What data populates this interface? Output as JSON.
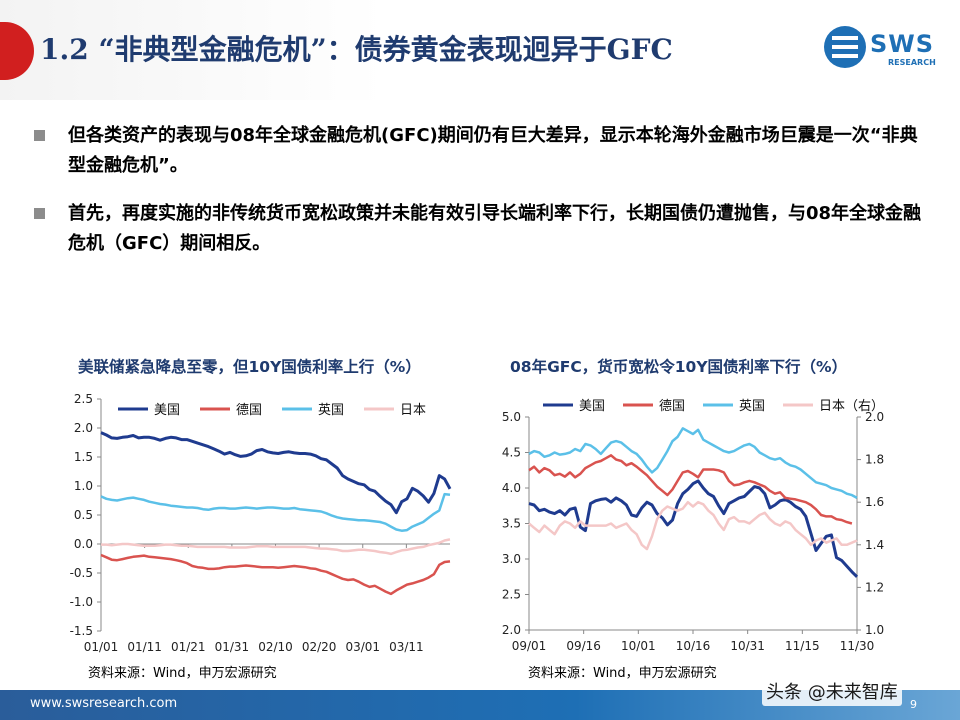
{
  "header": {
    "title": "1.2 “非典型金融危机”：债券黄金表现迥异于GFC",
    "logo_text": "SWS",
    "logo_sub": "RESEARCH"
  },
  "bullets": [
    "但各类资产的表现与08年全球金融危机(GFC)期间仍有巨大差异，显示本轮海外金融市场巨震是一次“非典型金融危机”。",
    "首先，再度实施的非传统货币宽松政策并未能有效引导长端利率下行，长期国债仍遭抛售，与08年全球金融危机（GFC）期间相反。"
  ],
  "footer": {
    "url": "www.swsresearch.com",
    "page": "9",
    "watermark": "头条 @未来智库"
  },
  "colors": {
    "us": "#1f3b8f",
    "de": "#d9534f",
    "uk": "#5bc0e8",
    "jp": "#f4c7c7",
    "title": "#1f3b6f"
  },
  "chart_data": [
    {
      "type": "line",
      "title": "美联储紧急降息至零，但10Y国债利率上行（%）",
      "source": "资料来源：Wind，申万宏源研究",
      "x_ticks": [
        "01/01",
        "01/11",
        "01/21",
        "01/31",
        "02/10",
        "02/20",
        "03/01",
        "03/11"
      ],
      "ylim": [
        -1.5,
        2.5
      ],
      "y_ticks": [
        "2.5",
        "2.0",
        "1.5",
        "1.0",
        "0.5",
        "0.0",
        "-0.5",
        "-1.0",
        "-1.5"
      ],
      "legend": [
        "美国",
        "德国",
        "英国",
        "日本"
      ],
      "grid": false,
      "series": [
        {
          "name": "美国",
          "values": [
            1.92,
            1.88,
            1.83,
            1.82,
            1.84,
            1.85,
            1.87,
            1.83,
            1.84,
            1.84,
            1.82,
            1.79,
            1.82,
            1.84,
            1.83,
            1.8,
            1.8,
            1.77,
            1.74,
            1.71,
            1.68,
            1.64,
            1.6,
            1.55,
            1.58,
            1.54,
            1.51,
            1.52,
            1.55,
            1.61,
            1.63,
            1.59,
            1.57,
            1.56,
            1.58,
            1.59,
            1.57,
            1.56,
            1.56,
            1.55,
            1.52,
            1.47,
            1.45,
            1.38,
            1.31,
            1.18,
            1.12,
            1.08,
            1.04,
            1.02,
            0.94,
            0.91,
            0.82,
            0.74,
            0.68,
            0.54,
            0.73,
            0.78,
            0.96,
            0.91,
            0.83,
            0.72,
            0.87,
            1.18,
            1.12,
            0.95
          ]
        },
        {
          "name": "德国",
          "values": [
            -0.19,
            -0.23,
            -0.27,
            -0.28,
            -0.26,
            -0.24,
            -0.22,
            -0.21,
            -0.2,
            -0.22,
            -0.23,
            -0.24,
            -0.25,
            -0.26,
            -0.28,
            -0.3,
            -0.33,
            -0.38,
            -0.4,
            -0.41,
            -0.43,
            -0.43,
            -0.42,
            -0.4,
            -0.39,
            -0.39,
            -0.38,
            -0.37,
            -0.38,
            -0.39,
            -0.4,
            -0.4,
            -0.4,
            -0.41,
            -0.4,
            -0.39,
            -0.38,
            -0.39,
            -0.4,
            -0.42,
            -0.43,
            -0.46,
            -0.48,
            -0.52,
            -0.56,
            -0.6,
            -0.62,
            -0.61,
            -0.65,
            -0.7,
            -0.74,
            -0.72,
            -0.77,
            -0.82,
            -0.86,
            -0.8,
            -0.75,
            -0.7,
            -0.68,
            -0.65,
            -0.62,
            -0.58,
            -0.52,
            -0.36,
            -0.31,
            -0.3
          ]
        },
        {
          "name": "英国",
          "values": [
            0.82,
            0.78,
            0.76,
            0.75,
            0.77,
            0.79,
            0.8,
            0.78,
            0.76,
            0.73,
            0.71,
            0.69,
            0.68,
            0.66,
            0.65,
            0.64,
            0.63,
            0.63,
            0.62,
            0.6,
            0.59,
            0.61,
            0.62,
            0.62,
            0.61,
            0.61,
            0.62,
            0.63,
            0.62,
            0.61,
            0.62,
            0.63,
            0.63,
            0.62,
            0.61,
            0.61,
            0.62,
            0.6,
            0.59,
            0.58,
            0.57,
            0.56,
            0.53,
            0.49,
            0.46,
            0.44,
            0.43,
            0.42,
            0.41,
            0.41,
            0.4,
            0.39,
            0.38,
            0.35,
            0.3,
            0.25,
            0.23,
            0.24,
            0.3,
            0.34,
            0.38,
            0.45,
            0.52,
            0.58,
            0.86,
            0.85
          ]
        },
        {
          "name": "日本",
          "values": [
            -0.01,
            -0.01,
            -0.02,
            -0.01,
            0.0,
            0.0,
            -0.01,
            -0.02,
            -0.03,
            -0.03,
            -0.03,
            -0.02,
            -0.01,
            -0.01,
            -0.02,
            -0.03,
            -0.03,
            -0.04,
            -0.05,
            -0.05,
            -0.05,
            -0.05,
            -0.05,
            -0.05,
            -0.06,
            -0.06,
            -0.06,
            -0.06,
            -0.05,
            -0.04,
            -0.04,
            -0.04,
            -0.05,
            -0.05,
            -0.05,
            -0.05,
            -0.05,
            -0.05,
            -0.05,
            -0.06,
            -0.07,
            -0.08,
            -0.08,
            -0.09,
            -0.1,
            -0.12,
            -0.12,
            -0.11,
            -0.1,
            -0.1,
            -0.11,
            -0.12,
            -0.14,
            -0.15,
            -0.17,
            -0.14,
            -0.11,
            -0.1,
            -0.08,
            -0.06,
            -0.05,
            -0.02,
            0.0,
            0.02,
            0.06,
            0.08
          ]
        }
      ]
    },
    {
      "type": "line",
      "title": "08年GFC，货币宽松令10Y国债利率下行（%）",
      "source": "资料来源：Wind，申万宏源研究",
      "x_ticks": [
        "09/01",
        "09/16",
        "10/01",
        "10/16",
        "10/31",
        "11/15",
        "11/30"
      ],
      "ylim": [
        2.0,
        5.0
      ],
      "y_ticks": [
        "5.0",
        "4.5",
        "4.0",
        "3.5",
        "3.0",
        "2.5",
        "2.0"
      ],
      "y2lim": [
        1.0,
        2.0
      ],
      "y2_ticks": [
        "2.0",
        "1.8",
        "1.6",
        "1.4",
        "1.2",
        "1.0"
      ],
      "legend": [
        "美国",
        "德国",
        "英国",
        "日本（右）"
      ],
      "grid": false,
      "series": [
        {
          "name": "美国",
          "values": [
            3.78,
            3.76,
            3.68,
            3.7,
            3.66,
            3.64,
            3.68,
            3.62,
            3.7,
            3.72,
            3.45,
            3.4,
            3.78,
            3.82,
            3.84,
            3.85,
            3.8,
            3.86,
            3.82,
            3.76,
            3.62,
            3.6,
            3.72,
            3.8,
            3.76,
            3.64,
            3.58,
            3.48,
            3.55,
            3.78,
            3.92,
            3.98,
            4.06,
            4.1,
            4.0,
            3.92,
            3.88,
            3.75,
            3.64,
            3.78,
            3.82,
            3.86,
            3.88,
            3.95,
            4.02,
            4.0,
            3.92,
            3.72,
            3.76,
            3.82,
            3.84,
            3.8,
            3.74,
            3.7,
            3.6,
            3.36,
            3.12,
            3.22,
            3.32,
            3.34,
            3.02,
            2.98,
            2.9,
            2.82,
            2.75
          ]
        },
        {
          "name": "德国",
          "values": [
            4.25,
            4.3,
            4.22,
            4.28,
            4.25,
            4.18,
            4.2,
            4.16,
            4.22,
            4.15,
            4.2,
            4.28,
            4.32,
            4.36,
            4.38,
            4.42,
            4.46,
            4.4,
            4.38,
            4.32,
            4.35,
            4.3,
            4.24,
            4.18,
            4.1,
            4.02,
            3.96,
            3.9,
            3.98,
            4.1,
            4.22,
            4.24,
            4.2,
            4.15,
            4.26,
            4.26,
            4.26,
            4.25,
            4.22,
            4.1,
            4.04,
            4.05,
            4.08,
            4.1,
            4.08,
            4.05,
            4.02,
            3.96,
            3.92,
            3.94,
            3.86,
            3.85,
            3.84,
            3.82,
            3.8,
            3.76,
            3.7,
            3.62,
            3.6,
            3.6,
            3.56,
            3.55,
            3.52,
            3.5
          ]
        },
        {
          "name": "英国",
          "values": [
            4.48,
            4.52,
            4.5,
            4.44,
            4.46,
            4.5,
            4.47,
            4.48,
            4.5,
            4.55,
            4.52,
            4.62,
            4.6,
            4.55,
            4.48,
            4.56,
            4.64,
            4.66,
            4.64,
            4.58,
            4.52,
            4.48,
            4.4,
            4.3,
            4.22,
            4.28,
            4.4,
            4.52,
            4.66,
            4.72,
            4.84,
            4.8,
            4.76,
            4.82,
            4.68,
            4.64,
            4.6,
            4.56,
            4.52,
            4.5,
            4.52,
            4.56,
            4.6,
            4.62,
            4.58,
            4.5,
            4.46,
            4.42,
            4.4,
            4.42,
            4.36,
            4.32,
            4.3,
            4.26,
            4.2,
            4.14,
            4.08,
            4.06,
            4.04,
            4.0,
            3.98,
            3.96,
            3.92,
            3.9,
            3.86
          ]
        },
        {
          "name": "日本（右）",
          "values": [
            1.5,
            1.48,
            1.46,
            1.49,
            1.47,
            1.45,
            1.49,
            1.51,
            1.5,
            1.48,
            1.51,
            1.49,
            1.49,
            1.49,
            1.49,
            1.49,
            1.5,
            1.48,
            1.49,
            1.5,
            1.47,
            1.45,
            1.4,
            1.38,
            1.44,
            1.52,
            1.56,
            1.58,
            1.57,
            1.56,
            1.57,
            1.6,
            1.58,
            1.6,
            1.59,
            1.56,
            1.54,
            1.5,
            1.47,
            1.52,
            1.53,
            1.51,
            1.51,
            1.5,
            1.52,
            1.54,
            1.55,
            1.52,
            1.5,
            1.49,
            1.51,
            1.5,
            1.47,
            1.45,
            1.43,
            1.4,
            1.42,
            1.43,
            1.41,
            1.42,
            1.43,
            1.4,
            1.4,
            1.41,
            1.42
          ]
        }
      ]
    }
  ]
}
